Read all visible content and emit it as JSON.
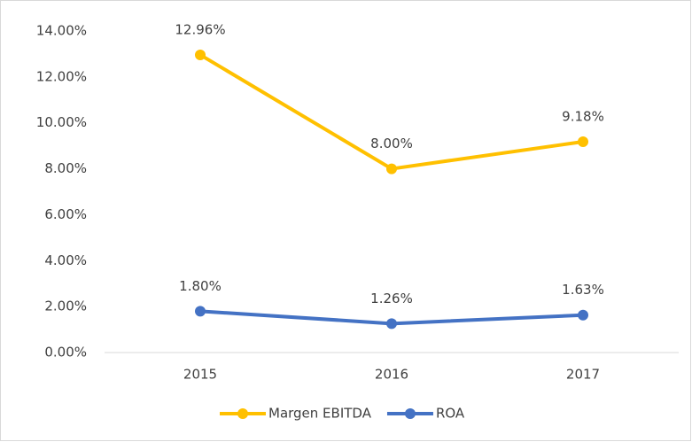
{
  "chart_data": {
    "type": "line",
    "categories": [
      "2015",
      "2016",
      "2017"
    ],
    "series": [
      {
        "name": "Margen EBITDA",
        "color": "#FFC000",
        "values": [
          12.96,
          8,
          9.18
        ],
        "value_labels": [
          "12.96%",
          "8.00%",
          "9.18%"
        ]
      },
      {
        "name": "ROA",
        "color": "#4472C4",
        "values": [
          1.8,
          1.26,
          1.63
        ],
        "value_labels": [
          "1.80%",
          "1.26%",
          "1.63%"
        ]
      }
    ],
    "ylim": [
      0,
      14
    ],
    "yticks": [
      {
        "value": 0,
        "label": "0.00%"
      },
      {
        "value": 2,
        "label": "2.00%"
      },
      {
        "value": 4,
        "label": "4.00%"
      },
      {
        "value": 6,
        "label": "6.00%"
      },
      {
        "value": 8,
        "label": "8.00%"
      },
      {
        "value": 10,
        "label": "10.00%"
      },
      {
        "value": 12,
        "label": "12.00%"
      },
      {
        "value": 14,
        "label": "14.00%"
      }
    ],
    "grid": false,
    "legend": "bottom"
  }
}
